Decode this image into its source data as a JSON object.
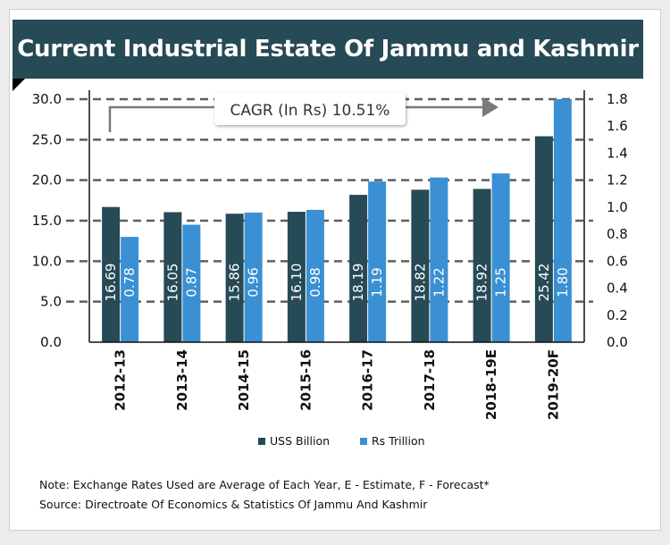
{
  "header": {
    "title": "Current Industrial Estate Of Jammu and Kashmir"
  },
  "notes": {
    "note": "Note: Exchange Rates Used are Average of Each Year, E - Estimate, F - Forecast*",
    "source": "Source: Directroate Of Economics & Statistics Of Jammu And Kashmir"
  },
  "chart_data": {
    "type": "bar",
    "title": "Current Industrial Estate Of Jammu and Kashmir",
    "categories": [
      "2012-13",
      "2013-14",
      "2014-15",
      "2015-16",
      "2016-17",
      "2017-18",
      "2018-19E",
      "2019-20F"
    ],
    "series": [
      {
        "name": "USS Billion",
        "axis": "left",
        "color": "#264a56",
        "values": [
          16.69,
          16.05,
          15.86,
          16.1,
          18.19,
          18.82,
          18.92,
          25.42
        ],
        "labels": [
          "16.69",
          "16.05",
          "15.86",
          "16.10",
          "18.19",
          "18.82",
          "18.92",
          "25.42"
        ]
      },
      {
        "name": "Rs Trillion",
        "axis": "right",
        "color": "#3a90d3",
        "values": [
          0.78,
          0.87,
          0.96,
          0.98,
          1.19,
          1.22,
          1.25,
          1.8
        ],
        "labels": [
          "0.78",
          "0.87",
          "0.96",
          "0.98",
          "1.19",
          "1.22",
          "1.25",
          "1.80"
        ]
      }
    ],
    "y_left": {
      "min": 0,
      "max": 30,
      "ticks": [
        "0.0",
        "5.0",
        "10.0",
        "15.0",
        "20.0",
        "25.0",
        "30.0"
      ]
    },
    "y_right": {
      "min": 0,
      "max": 1.8,
      "ticks": [
        "0.0",
        "0.2",
        "0.4",
        "0.6",
        "0.8",
        "1.0",
        "1.2",
        "1.4",
        "1.6",
        "1.8"
      ]
    },
    "grid": true,
    "legend_position": "bottom",
    "annotation": "CAGR (In Rs) 10.51%"
  }
}
